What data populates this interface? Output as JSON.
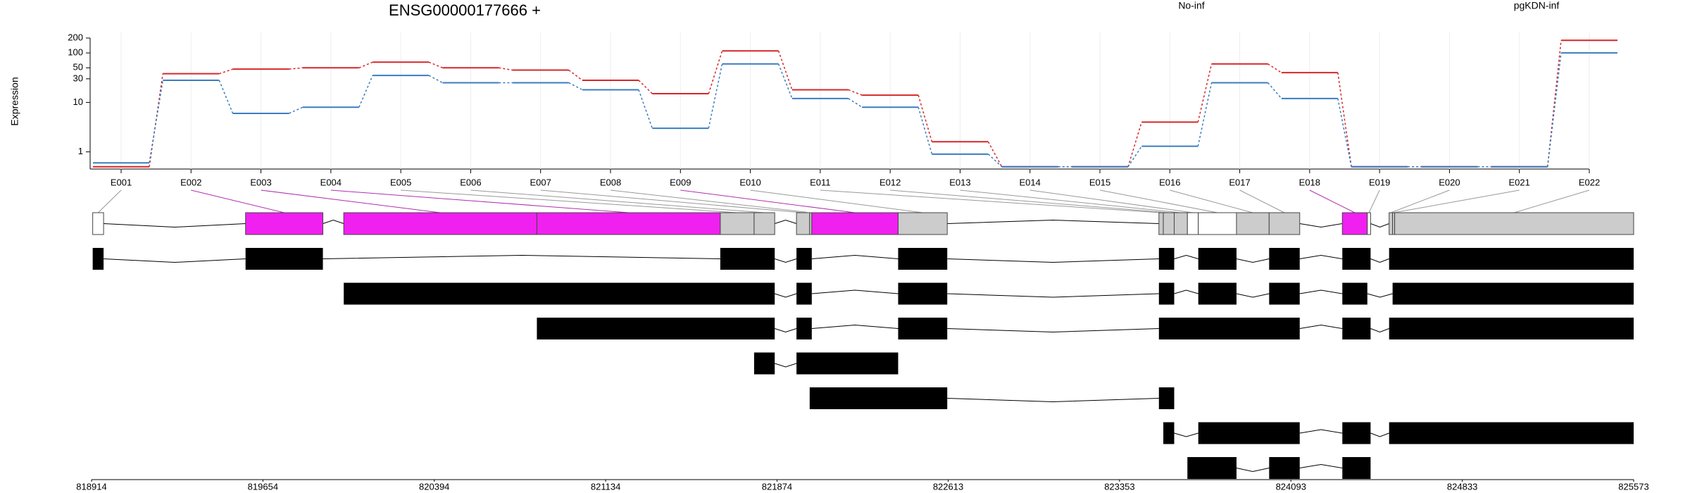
{
  "chart_data": {
    "type": "line",
    "title": "ENSG00000177666 +",
    "y_label": "Expression",
    "log_scale": true,
    "grid": true,
    "legend_position": "top-right",
    "categories": [
      "E001",
      "E002",
      "E003",
      "E004",
      "E005",
      "E006",
      "E007",
      "E008",
      "E009",
      "E010",
      "E011",
      "E012",
      "E013",
      "E014",
      "E015",
      "E016",
      "E017",
      "E018",
      "E019",
      "E020",
      "E021",
      "E022"
    ],
    "series": [
      {
        "name": "No-inf",
        "color": "#d62728",
        "values": [
          0.5,
          38,
          47,
          50,
          65,
          50,
          45,
          28,
          15,
          110,
          18,
          14,
          1.6,
          0.5,
          0.5,
          4,
          60,
          40,
          0.5,
          0.5,
          0.5,
          180
        ]
      },
      {
        "name": "pgKDN-inf",
        "color": "#3a7dc0",
        "values": [
          0.6,
          28,
          6,
          8,
          35,
          25,
          25,
          18,
          3,
          60,
          12,
          8,
          0.9,
          0.5,
          0.5,
          1.3,
          25,
          12,
          0.5,
          0.5,
          0.5,
          100
        ]
      }
    ],
    "ylim": [
      0.45,
      260
    ],
    "yticks": [
      1,
      10,
      30,
      50,
      100,
      200
    ],
    "gene_model": {
      "xlim": [
        818914,
        825573
      ],
      "xticks": [
        818914,
        819654,
        820394,
        821134,
        821874,
        822613,
        823353,
        824093,
        824833,
        825573
      ],
      "exons": [
        {
          "start": 818919,
          "end": 818966,
          "color": "#ffffff"
        },
        {
          "start": 819579,
          "end": 819913,
          "color": "#f020f0"
        },
        {
          "start": 820003,
          "end": 820837,
          "color": "#f020f0"
        },
        {
          "start": 820837,
          "end": 821629,
          "color": "#f020f0"
        },
        {
          "start": 821629,
          "end": 821775,
          "color": "#cccccc"
        },
        {
          "start": 821775,
          "end": 821864,
          "color": "#cccccc"
        },
        {
          "start": 821958,
          "end": 822015,
          "color": "#cccccc"
        },
        {
          "start": 822015,
          "end": 822024,
          "color": "#cccccc"
        },
        {
          "start": 822024,
          "end": 822397,
          "color": "#f020f0"
        },
        {
          "start": 822397,
          "end": 822609,
          "color": "#cccccc"
        },
        {
          "start": 823523,
          "end": 823542,
          "color": "#cccccc"
        },
        {
          "start": 823542,
          "end": 823589,
          "color": "#cccccc"
        },
        {
          "start": 823589,
          "end": 823646,
          "color": "#cccccc"
        },
        {
          "start": 823646,
          "end": 823693,
          "color": "#ffffff"
        },
        {
          "start": 823693,
          "end": 823858,
          "color": "#ffffff"
        },
        {
          "start": 823858,
          "end": 823999,
          "color": "#cccccc"
        },
        {
          "start": 823999,
          "end": 824131,
          "color": "#cccccc"
        },
        {
          "start": 824315,
          "end": 824423,
          "color": "#f020f0"
        },
        {
          "start": 824423,
          "end": 824437,
          "color": "#ffffff"
        },
        {
          "start": 824517,
          "end": 824532,
          "color": "#cccccc"
        },
        {
          "start": 824532,
          "end": 824541,
          "color": "#cccccc"
        },
        {
          "start": 824541,
          "end": 825573,
          "color": "#cccccc"
        }
      ],
      "transcripts": [
        [
          [
            818919,
            818966
          ],
          [
            819579,
            819913
          ],
          [
            821629,
            821864
          ],
          [
            821958,
            822024
          ],
          [
            822397,
            822609
          ],
          [
            823523,
            823589
          ],
          [
            823693,
            823858
          ],
          [
            823999,
            824131
          ],
          [
            824315,
            824437
          ],
          [
            824517,
            825573
          ]
        ],
        [
          [
            820003,
            821864
          ],
          [
            821958,
            822024
          ],
          [
            822397,
            822609
          ],
          [
            823523,
            823589
          ],
          [
            823693,
            823858
          ],
          [
            823999,
            824131
          ],
          [
            824315,
            824423
          ],
          [
            824532,
            825573
          ]
        ],
        [
          [
            820837,
            821864
          ],
          [
            821958,
            822024
          ],
          [
            822397,
            822609
          ],
          [
            823523,
            824131
          ],
          [
            824315,
            824437
          ],
          [
            824517,
            825573
          ]
        ],
        [
          [
            821775,
            821864
          ],
          [
            821958,
            822397
          ]
        ],
        [
          [
            822015,
            822609
          ],
          [
            823523,
            823589
          ]
        ],
        [
          [
            823542,
            823589
          ],
          [
            823693,
            824131
          ],
          [
            824315,
            824437
          ],
          [
            824517,
            825573
          ]
        ],
        [
          [
            823646,
            823858
          ],
          [
            823999,
            824131
          ],
          [
            824315,
            824437
          ]
        ]
      ]
    }
  }
}
